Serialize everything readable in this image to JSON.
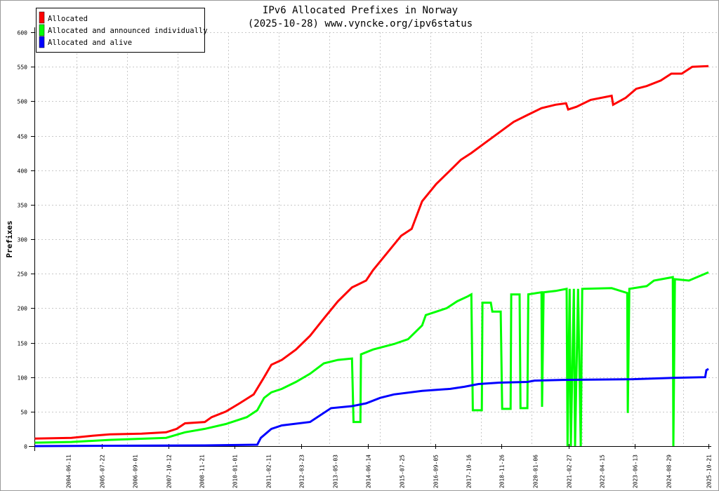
{
  "chart_data": {
    "type": "line",
    "title": "IPv6 Allocated Prefixes in Norway",
    "subtitle": "(2025-10-28) www.vyncke.org/ipv6status",
    "xlabel": "",
    "ylabel": "Prefixes",
    "xlim": [
      2003.316,
      2025.8
    ],
    "ylim": [
      0,
      600
    ],
    "grid": true,
    "legend_position": "top-left",
    "yticks": [
      0,
      50,
      100,
      150,
      200,
      250,
      300,
      350,
      400,
      450,
      500,
      550,
      600
    ],
    "xticks": [
      {
        "label": "2004-06-11",
        "x": 2004.44
      },
      {
        "label": "2005-07-22",
        "x": 2005.56
      },
      {
        "label": "2006-09-01",
        "x": 2006.67
      },
      {
        "label": "2007-10-12",
        "x": 2007.78
      },
      {
        "label": "2008-11-21",
        "x": 2008.89
      },
      {
        "label": "2010-01-01",
        "x": 2010.0
      },
      {
        "label": "2011-02-11",
        "x": 2011.11
      },
      {
        "label": "2012-03-23",
        "x": 2012.22
      },
      {
        "label": "2013-05-03",
        "x": 2013.33
      },
      {
        "label": "2014-06-14",
        "x": 2014.45
      },
      {
        "label": "2015-07-25",
        "x": 2015.56
      },
      {
        "label": "2016-09-05",
        "x": 2016.68
      },
      {
        "label": "2017-10-16",
        "x": 2017.79
      },
      {
        "label": "2018-11-26",
        "x": 2018.9
      },
      {
        "label": "2020-01-06",
        "x": 2020.01
      },
      {
        "label": "2021-02-27",
        "x": 2021.13
      },
      {
        "label": "2022-04-15",
        "x": 2022.24
      },
      {
        "label": "2023-06-13",
        "x": 2023.35
      },
      {
        "label": "2024-08-29",
        "x": 2024.46
      },
      {
        "label": "2025-10-21",
        "x": 2025.8
      }
    ],
    "series": [
      {
        "name": "Allocated",
        "color": "#ff0000",
        "x": [
          2003.33,
          2004.55,
          2005.25,
          2005.83,
          2006.89,
          2007.71,
          2008.06,
          2008.34,
          2009.0,
          2009.23,
          2009.7,
          2010.16,
          2010.63,
          2010.98,
          2011.22,
          2011.57,
          2012.04,
          2012.51,
          2012.97,
          2013.44,
          2013.91,
          2014.38,
          2014.61,
          2015.08,
          2015.55,
          2015.9,
          2016.25,
          2016.72,
          2017.19,
          2017.54,
          2017.89,
          2018.36,
          2018.83,
          2019.3,
          2019.76,
          2020.23,
          2020.7,
          2021.05,
          2021.12,
          2021.4,
          2021.87,
          2022.57,
          2022.62,
          2023.04,
          2023.39,
          2023.74,
          2024.21,
          2024.56,
          2024.91,
          2025.26,
          2025.8
        ],
        "values": [
          11,
          12,
          15,
          17,
          18,
          20,
          25,
          33,
          35,
          42,
          50,
          62,
          75,
          100,
          118,
          125,
          140,
          160,
          185,
          210,
          230,
          240,
          255,
          280,
          305,
          315,
          355,
          380,
          400,
          415,
          425,
          440,
          455,
          470,
          480,
          490,
          495,
          497,
          488,
          492,
          502,
          508,
          495,
          505,
          518,
          522,
          530,
          540,
          540,
          550,
          551
        ]
      },
      {
        "name": "Allocated and announced individually",
        "color": "#00ff00",
        "x": [
          2003.33,
          2004.55,
          2005.83,
          2007.71,
          2008.34,
          2009.0,
          2009.7,
          2010.4,
          2010.75,
          2010.98,
          2011.22,
          2011.57,
          2012.04,
          2012.51,
          2012.97,
          2013.44,
          2013.91,
          2013.96,
          2014.19,
          2014.21,
          2014.61,
          2015.31,
          2015.78,
          2016.25,
          2016.37,
          2016.72,
          2017.07,
          2017.42,
          2017.77,
          2017.89,
          2017.94,
          2018.24,
          2018.26,
          2018.54,
          2018.59,
          2018.87,
          2018.92,
          2019.2,
          2019.22,
          2019.5,
          2019.53,
          2019.76,
          2019.79,
          2020.23,
          2020.25,
          2020.3,
          2020.7,
          2021.07,
          2021.1,
          2021.17,
          2021.21,
          2021.31,
          2021.35,
          2021.45,
          2021.54,
          2021.59,
          2022.57,
          2023.09,
          2023.11,
          2023.16,
          2023.74,
          2023.98,
          2024.61,
          2024.63,
          2024.68,
          2025.15,
          2025.8
        ],
        "values": [
          5,
          6,
          9,
          12,
          20,
          25,
          32,
          42,
          52,
          70,
          78,
          83,
          93,
          105,
          120,
          125,
          127,
          35,
          35,
          133,
          140,
          148,
          155,
          175,
          190,
          195,
          200,
          210,
          217,
          220,
          52,
          52,
          208,
          208,
          195,
          195,
          54,
          54,
          220,
          220,
          55,
          55,
          220,
          223,
          57,
          223,
          225,
          228,
          0,
          228,
          0,
          228,
          0,
          228,
          0,
          228,
          229,
          222,
          48,
          228,
          232,
          240,
          245,
          0,
          242,
          240,
          252
        ]
      },
      {
        "name": "Allocated and alive",
        "color": "#0000ff",
        "x": [
          2003.33,
          2009.0,
          2010.75,
          2010.87,
          2011.22,
          2011.57,
          2012.51,
          2013.21,
          2013.91,
          2014.38,
          2014.85,
          2015.31,
          2016.25,
          2017.19,
          2017.66,
          2018.13,
          2018.83,
          2019.76,
          2020.0,
          2020.93,
          2023.27,
          2024.68,
          2025.69,
          2025.73,
          2025.8
        ],
        "values": [
          0,
          1,
          2,
          12,
          25,
          30,
          35,
          55,
          58,
          62,
          70,
          75,
          80,
          83,
          86,
          90,
          92,
          93,
          95,
          96,
          97,
          99,
          100,
          110,
          112
        ]
      }
    ]
  }
}
